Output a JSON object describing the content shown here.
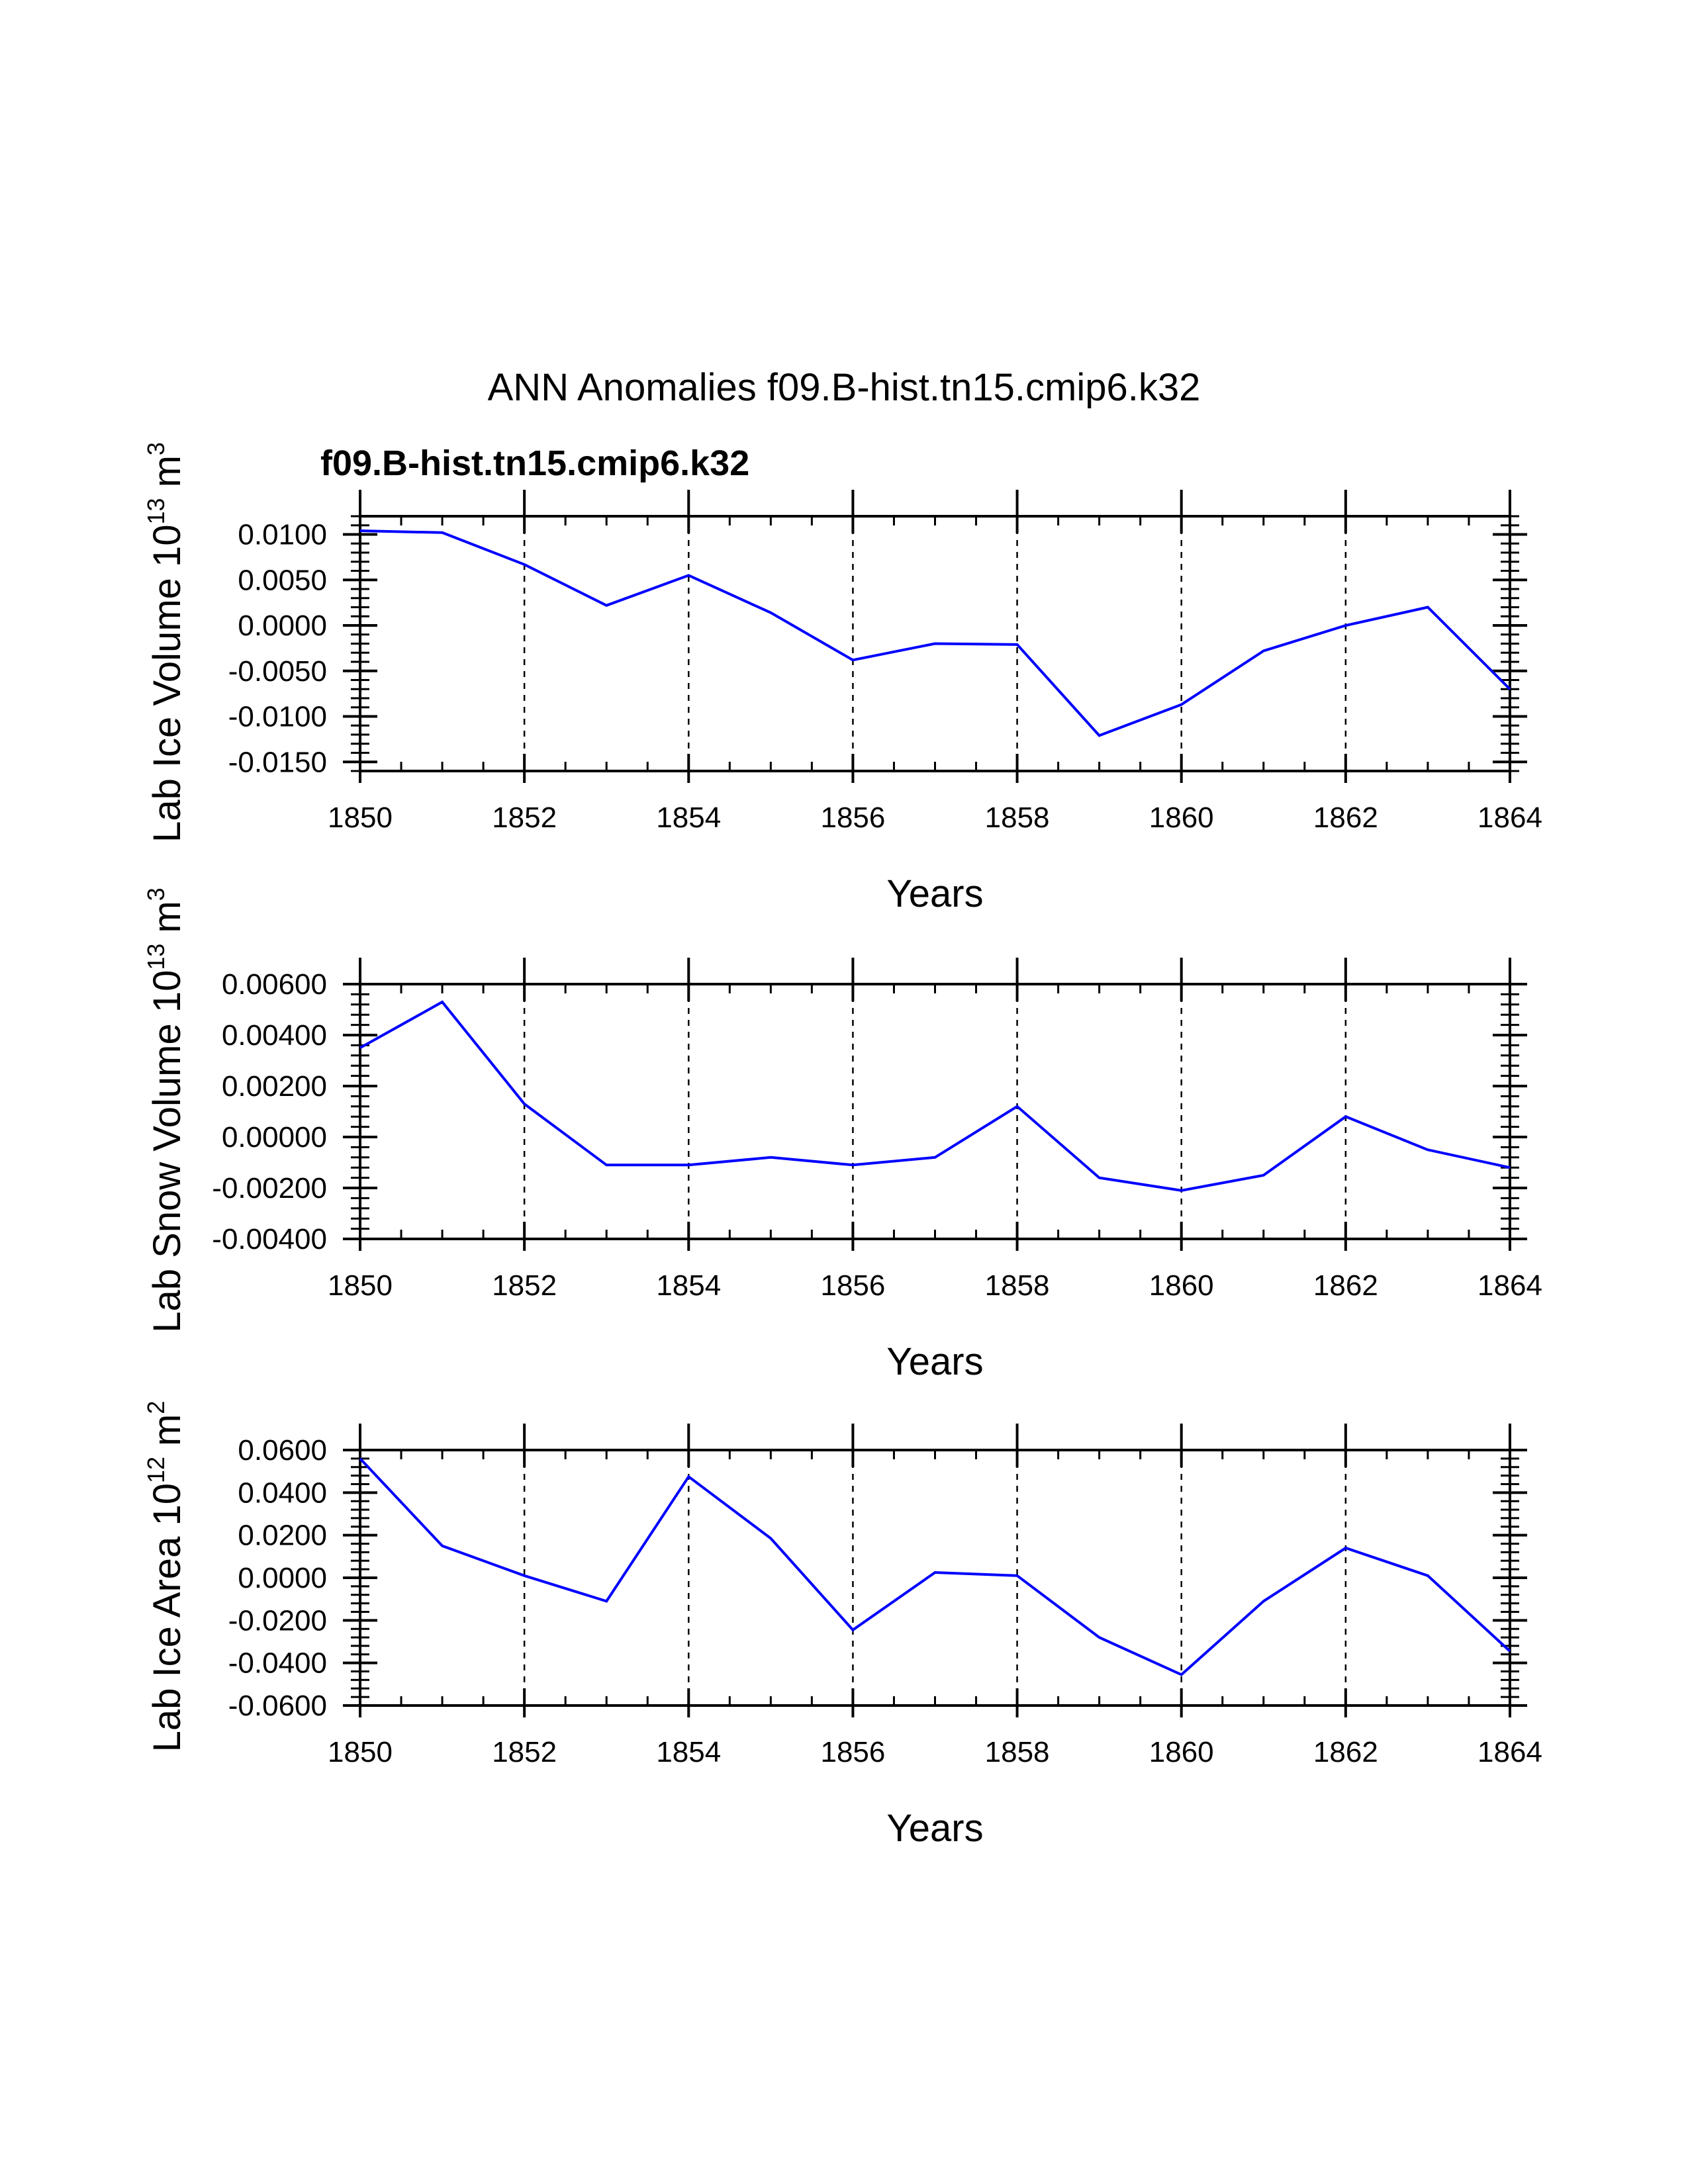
{
  "title": "ANN Anomalies f09.B-hist.tn15.cmip6.k32",
  "series_label": "f09.B-hist.tn15.cmip6.k32",
  "colors": {
    "series": "#0000ff",
    "axis": "#000000"
  },
  "chart_data": [
    {
      "type": "line",
      "ylabel_main": "Lab Ice Volume 10",
      "ylabel_exp": "13",
      "ylabel_unit": "m",
      "ylabel_unit_exp": "3",
      "xlabel": "Years",
      "x": [
        1850,
        1851,
        1852,
        1853,
        1854,
        1855,
        1856,
        1857,
        1858,
        1859,
        1860,
        1861,
        1862,
        1863,
        1864
      ],
      "series": [
        {
          "name": "f09.B-hist.tn15.cmip6.k32",
          "values": [
            0.0104,
            0.0102,
            0.0067,
            0.0022,
            0.0055,
            0.0014,
            -0.0038,
            -0.002,
            -0.0021,
            -0.0121,
            -0.0087,
            -0.0028,
            0.0,
            0.002,
            -0.007
          ]
        }
      ],
      "xlim": [
        1850,
        1864
      ],
      "ylim": [
        -0.016,
        0.012
      ],
      "xticks": [
        1850,
        1852,
        1854,
        1856,
        1858,
        1860,
        1862,
        1864
      ],
      "xtick_labels": [
        "1850",
        "1852",
        "1854",
        "1856",
        "1858",
        "1860",
        "1862",
        "1864"
      ],
      "yticks": [
        -0.015,
        -0.01,
        -0.005,
        0.0,
        0.005,
        0.01
      ],
      "ytick_labels": [
        "-0.0150",
        "-0.0100",
        "-0.0050",
        "0.0000",
        "0.0050",
        "0.0100"
      ],
      "ytick_minor": 0.001,
      "grid": true
    },
    {
      "type": "line",
      "ylabel_main": "Lab Snow Volume 10",
      "ylabel_exp": "13",
      "ylabel_unit": "m",
      "ylabel_unit_exp": "3",
      "xlabel": "Years",
      "x": [
        1850,
        1851,
        1852,
        1853,
        1854,
        1855,
        1856,
        1857,
        1858,
        1859,
        1860,
        1861,
        1862,
        1863,
        1864
      ],
      "series": [
        {
          "name": "f09.B-hist.tn15.cmip6.k32",
          "values": [
            0.0035,
            0.0053,
            0.0013,
            -0.0011,
            -0.0011,
            -0.0008,
            -0.0011,
            -0.0008,
            0.0012,
            -0.0016,
            -0.0021,
            -0.0015,
            0.0008,
            -0.0005,
            -0.0012
          ]
        }
      ],
      "xlim": [
        1850,
        1864
      ],
      "ylim": [
        -0.004,
        0.006
      ],
      "xticks": [
        1850,
        1852,
        1854,
        1856,
        1858,
        1860,
        1862,
        1864
      ],
      "xtick_labels": [
        "1850",
        "1852",
        "1854",
        "1856",
        "1858",
        "1860",
        "1862",
        "1864"
      ],
      "yticks": [
        -0.004,
        -0.002,
        0.0,
        0.002,
        0.004,
        0.006
      ],
      "ytick_labels": [
        "-0.00400",
        "-0.00200",
        "0.00000",
        "0.00200",
        "0.00400",
        "0.00600"
      ],
      "ytick_minor": 0.0004,
      "grid": true
    },
    {
      "type": "line",
      "ylabel_main": "Lab Ice Area 10",
      "ylabel_exp": "12",
      "ylabel_unit": "m",
      "ylabel_unit_exp": "2",
      "xlabel": "Years",
      "x": [
        1850,
        1851,
        1852,
        1853,
        1854,
        1855,
        1856,
        1857,
        1858,
        1859,
        1860,
        1861,
        1862,
        1863,
        1864
      ],
      "series": [
        {
          "name": "f09.B-hist.tn15.cmip6.k32",
          "values": [
            0.056,
            0.015,
            0.001,
            -0.011,
            0.0475,
            0.0185,
            -0.0245,
            0.0025,
            0.001,
            -0.028,
            -0.0455,
            -0.011,
            0.014,
            0.001,
            -0.0345
          ]
        }
      ],
      "xlim": [
        1850,
        1864
      ],
      "ylim": [
        -0.06,
        0.06
      ],
      "xticks": [
        1850,
        1852,
        1854,
        1856,
        1858,
        1860,
        1862,
        1864
      ],
      "xtick_labels": [
        "1850",
        "1852",
        "1854",
        "1856",
        "1858",
        "1860",
        "1862",
        "1864"
      ],
      "yticks": [
        -0.06,
        -0.04,
        -0.02,
        0.0,
        0.02,
        0.04,
        0.06
      ],
      "ytick_labels": [
        "-0.0600",
        "-0.0400",
        "-0.0200",
        "0.0000",
        "0.0200",
        "0.0400",
        "0.0600"
      ],
      "ytick_minor": 0.004,
      "grid": true
    }
  ]
}
